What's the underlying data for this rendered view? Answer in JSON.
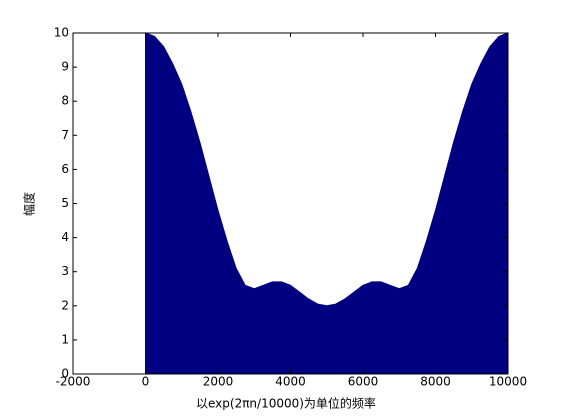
{
  "chart_data": {
    "type": "area",
    "xlabel": "以exp(2πn/10000)为单位的频率",
    "ylabel": "幅度",
    "x": [
      0,
      250,
      500,
      750,
      1000,
      1250,
      1500,
      1750,
      2000,
      2250,
      2500,
      2750,
      3000,
      3250,
      3500,
      3750,
      4000,
      4250,
      4500,
      4750,
      5000,
      5250,
      5500,
      5750,
      6000,
      6250,
      6500,
      6750,
      7000,
      7250,
      7500,
      7750,
      8000,
      8250,
      8500,
      8750,
      9000,
      9250,
      9500,
      9750,
      10000
    ],
    "values": [
      10,
      9.9,
      9.6,
      9.1,
      8.5,
      7.7,
      6.8,
      5.8,
      4.8,
      3.9,
      3.1,
      2.6,
      2.5,
      2.6,
      2.7,
      2.7,
      2.6,
      2.4,
      2.2,
      2.05,
      2,
      2.05,
      2.2,
      2.4,
      2.6,
      2.7,
      2.7,
      2.6,
      2.5,
      2.6,
      3.1,
      3.9,
      4.8,
      5.8,
      6.8,
      7.7,
      8.5,
      9.1,
      9.6,
      9.9,
      10
    ],
    "color": "#000080",
    "xlim": [
      -2000,
      10000
    ],
    "xticks": [
      -2000,
      0,
      2000,
      4000,
      6000,
      8000,
      10000
    ],
    "ylim": [
      0,
      10
    ],
    "yticks": [
      0,
      1,
      2,
      3,
      4,
      5,
      6,
      7,
      8,
      9,
      10
    ]
  }
}
